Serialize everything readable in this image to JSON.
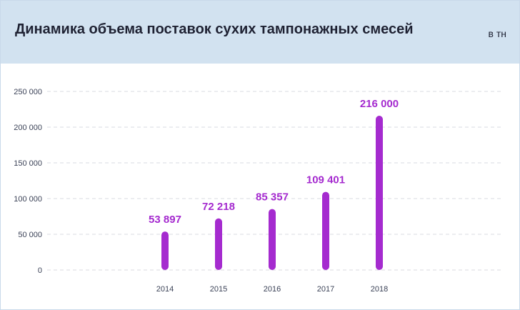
{
  "header": {
    "title": "Динамика объема поставок сухих тампонажных смесей",
    "unit": "в тн"
  },
  "colors": {
    "header_bg": "#d2e2f0",
    "bar": "#a52bcf",
    "label": "#a52bcf",
    "grid": "#d8dbe2"
  },
  "chart_data": {
    "type": "bar",
    "categories": [
      "2014",
      "2015",
      "2016",
      "2017",
      "2018"
    ],
    "values": [
      53897,
      72218,
      85357,
      109401,
      216000
    ],
    "data_labels": [
      "53 897",
      "72 218",
      "85 357",
      "109 401",
      "216 000"
    ],
    "y_ticks": [
      {
        "value": 0,
        "label": "0"
      },
      {
        "value": 50000,
        "label": "50 000"
      },
      {
        "value": 100000,
        "label": "100 000"
      },
      {
        "value": 150000,
        "label": "150 000"
      },
      {
        "value": 200000,
        "label": "200 000"
      },
      {
        "value": 250000,
        "label": "250 000"
      }
    ],
    "ylim": [
      0,
      250000
    ],
    "grid": true,
    "legend": "none"
  }
}
